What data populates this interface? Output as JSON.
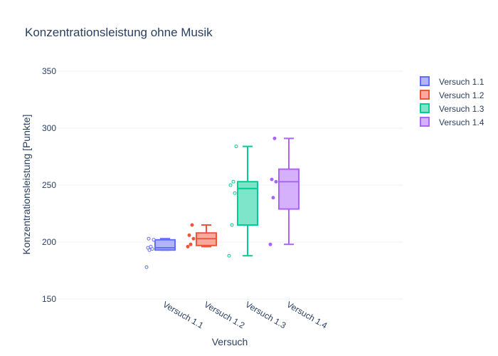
{
  "chart_data": {
    "type": "box",
    "title": "Konzentrationsleistung ohne Musik",
    "xlabel": "Versuch",
    "ylabel": "Konzentrationsleistung [Punkte]",
    "ylim": [
      150,
      350
    ],
    "yticks": [
      150,
      200,
      250,
      300,
      350
    ],
    "grid": true,
    "legend_position": "right",
    "series": [
      {
        "name": "Versuch 1.1",
        "color": "#636efa",
        "min": 193,
        "q1": 193,
        "median": 195,
        "q3": 202,
        "max": 203,
        "outliers": [
          178
        ],
        "points": [
          178,
          193,
          194,
          195,
          196,
          202,
          203
        ],
        "point_style": "open"
      },
      {
        "name": "Versuch 1.2",
        "color": "#ef553b",
        "min": 196,
        "q1": 197,
        "median": 203,
        "q3": 208,
        "max": 215,
        "outliers": [],
        "points": [
          196,
          198,
          203,
          206,
          215
        ],
        "point_style": "filled"
      },
      {
        "name": "Versuch 1.3",
        "color": "#00cc96",
        "min": 188,
        "q1": 215,
        "median": 247,
        "q3": 253,
        "max": 284,
        "outliers": [],
        "points": [
          188,
          215,
          243,
          250,
          253,
          284
        ],
        "point_style": "open"
      },
      {
        "name": "Versuch 1.4",
        "color": "#ab63fa",
        "min": 198,
        "q1": 229,
        "median": 253,
        "q3": 264,
        "max": 291,
        "outliers": [],
        "points": [
          198,
          239,
          253,
          255,
          291
        ],
        "point_style": "filled"
      }
    ]
  }
}
